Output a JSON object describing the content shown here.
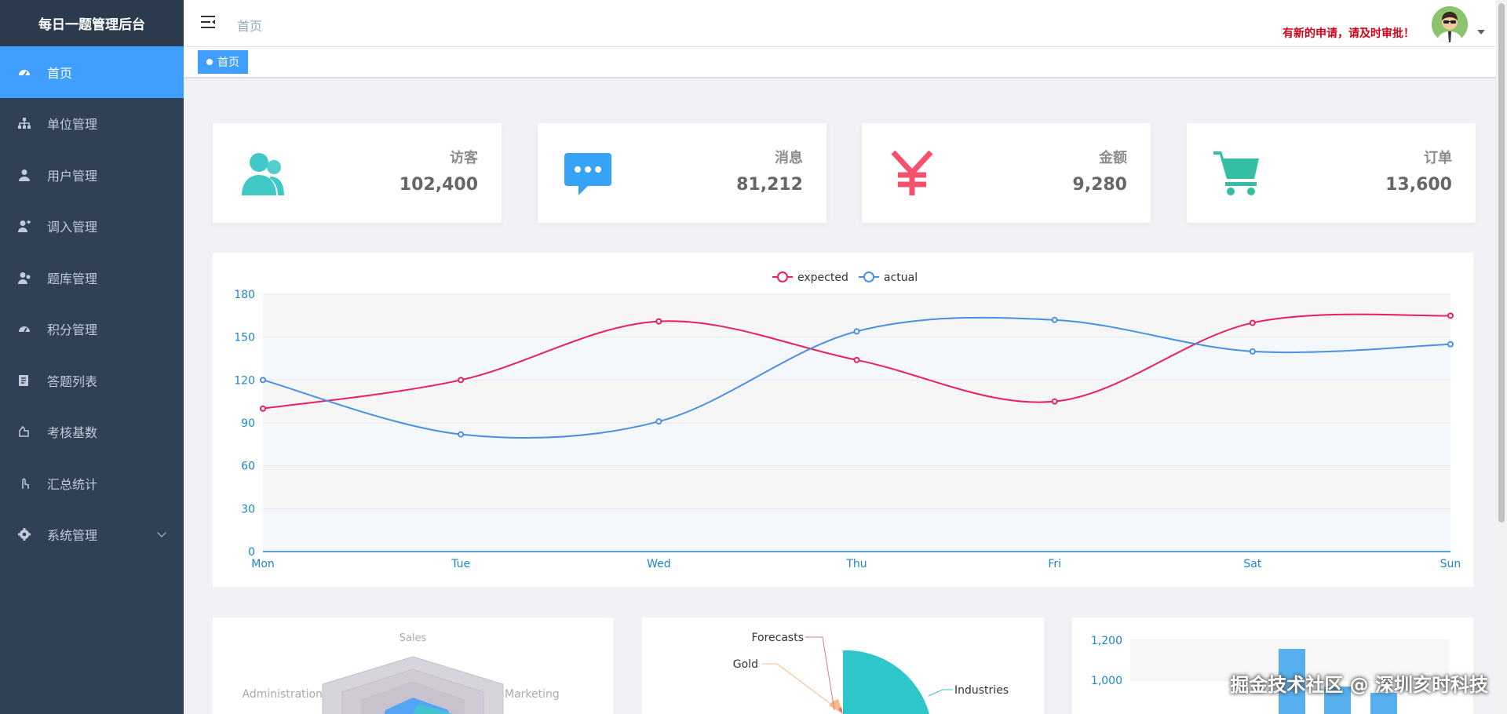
{
  "sidebar": {
    "brand": "每日一题管理后台",
    "items": [
      {
        "label": "首页",
        "icon": "dashboard-icon",
        "active": true
      },
      {
        "label": "单位管理",
        "icon": "org-tree-icon"
      },
      {
        "label": "用户管理",
        "icon": "user-icon"
      },
      {
        "label": "调入管理",
        "icon": "user-transfer-icon"
      },
      {
        "label": "题库管理",
        "icon": "question-bank-icon"
      },
      {
        "label": "积分管理",
        "icon": "points-icon"
      },
      {
        "label": "答题列表",
        "icon": "list-icon"
      },
      {
        "label": "考核基数",
        "icon": "assessment-icon"
      },
      {
        "label": "汇总统计",
        "icon": "statistics-icon"
      },
      {
        "label": "系统管理",
        "icon": "gear-icon",
        "has_submenu": true
      }
    ]
  },
  "navbar": {
    "breadcrumb": "首页",
    "notice": "有新的申请，请及时审批！"
  },
  "tags": {
    "active": "首页"
  },
  "cards": [
    {
      "label": "访客",
      "value": "102,400",
      "icon": "people-icon",
      "color": "#40c9c6"
    },
    {
      "label": "消息",
      "value": "81,212",
      "icon": "message-icon",
      "color": "#36a3f7"
    },
    {
      "label": "金额",
      "value": "9,280",
      "icon": "yen-icon",
      "color": "#f4516c"
    },
    {
      "label": "订单",
      "value": "13,600",
      "icon": "cart-icon",
      "color": "#34bfa3"
    }
  ],
  "chart_data": [
    {
      "type": "line",
      "x": [
        "Mon",
        "Tue",
        "Wed",
        "Thu",
        "Fri",
        "Sat",
        "Sun"
      ],
      "series": [
        {
          "name": "expected",
          "values": [
            100,
            120,
            161,
            134,
            105,
            160,
            165
          ],
          "color": "#e91e63"
        },
        {
          "name": "actual",
          "values": [
            120,
            82,
            91,
            154,
            162,
            140,
            145
          ],
          "color": "#4a90e2"
        }
      ],
      "yticks": [
        "0",
        "30",
        "60",
        "90",
        "120",
        "150",
        "180"
      ],
      "ylim": [
        0,
        180
      ],
      "legend": "top-center"
    },
    {
      "type": "radar",
      "indicators": [
        "Sales",
        "Administration",
        "Marketing"
      ]
    },
    {
      "type": "pie",
      "labels": [
        "Forecasts",
        "Gold",
        "Industries"
      ]
    },
    {
      "type": "bar",
      "yticks": [
        "1,000",
        "1,200"
      ]
    }
  ],
  "watermark": "掘金技术社区 @ 深圳亥时科技",
  "colors": {
    "sidebar_bg": "#304156",
    "accent": "#409eff",
    "notice": "#d0021b"
  }
}
